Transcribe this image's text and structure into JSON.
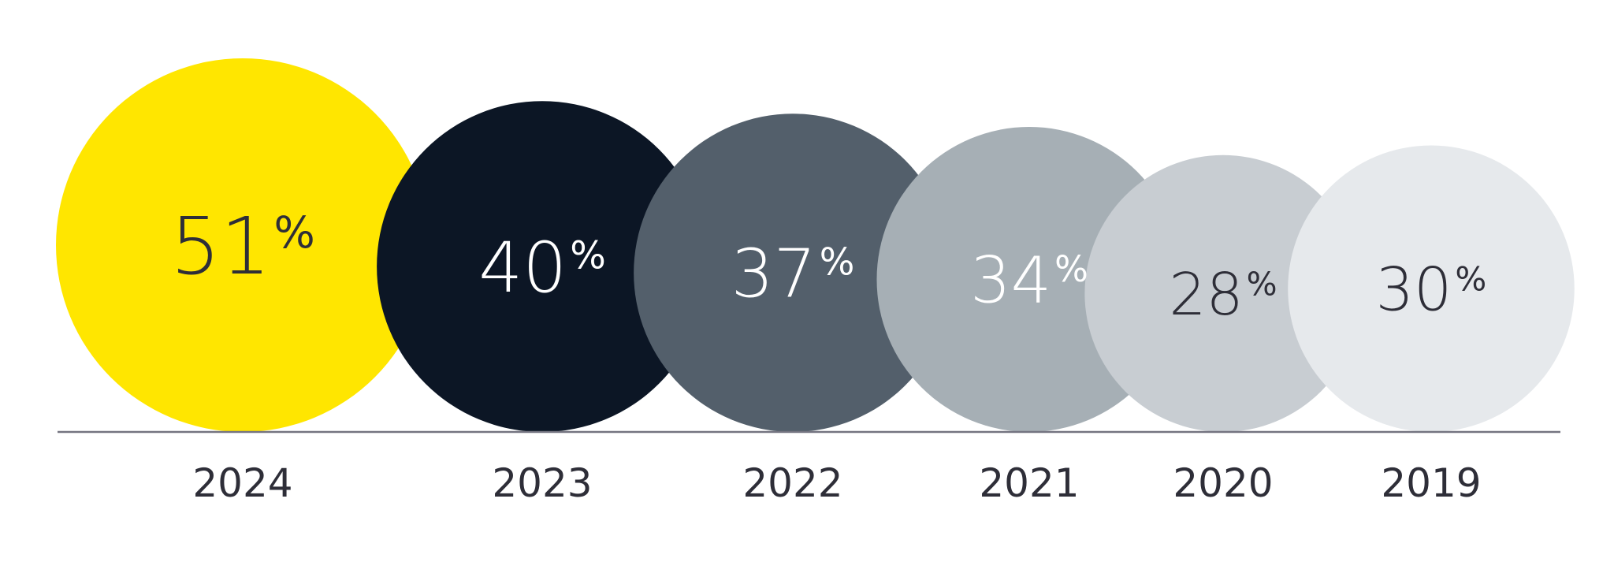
{
  "chart_data": {
    "type": "bubble",
    "unit": "%",
    "categories": [
      "2024",
      "2023",
      "2022",
      "2021",
      "2020",
      "2019"
    ],
    "values": [
      51,
      40,
      37,
      34,
      28,
      30
    ],
    "colors": [
      "#FFE600",
      "#0C1625",
      "#535F6B",
      "#A6AFB5",
      "#C8CDD2",
      "#E6E9EC"
    ],
    "text_colors": [
      "#2E2E38",
      "#FFFFFF",
      "#FFFFFF",
      "#FFFFFF",
      "#2E2E38",
      "#2E2E38"
    ],
    "baseline_color": "#747480",
    "title": "",
    "xlabel": "",
    "ylabel": ""
  }
}
